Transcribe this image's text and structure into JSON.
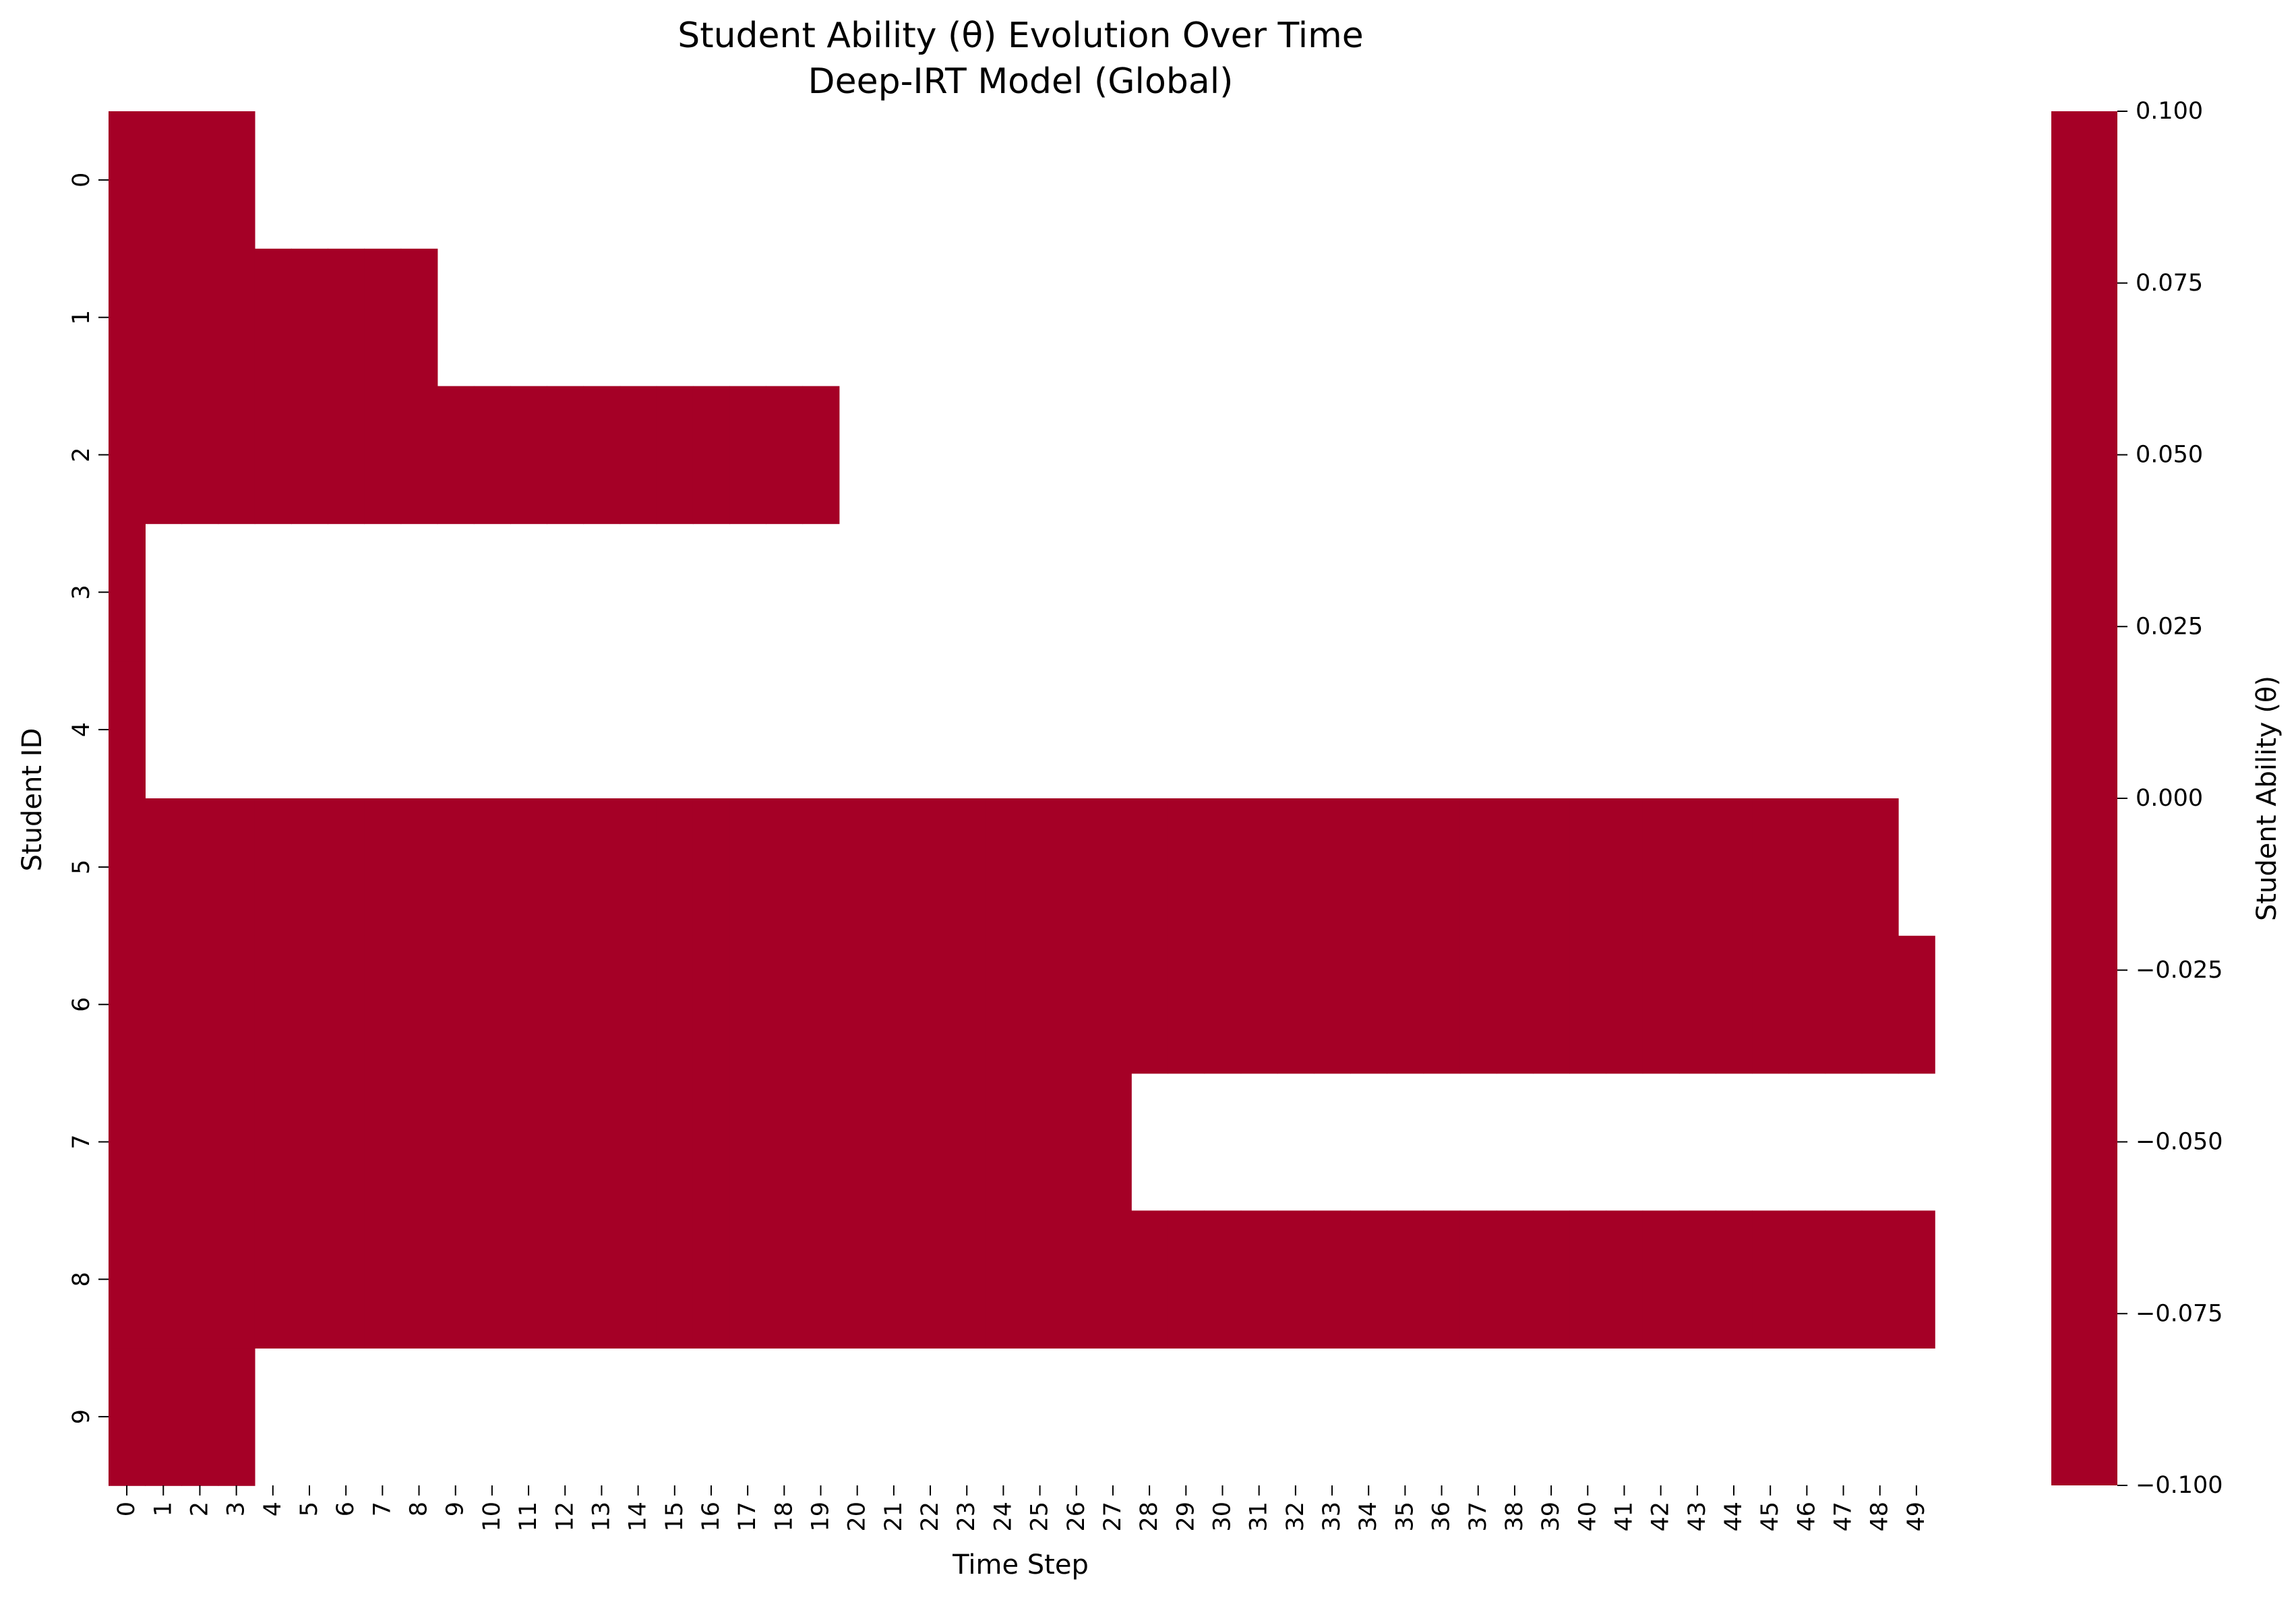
{
  "chart_data": {
    "type": "heatmap",
    "title": "Student Ability (θ) Evolution Over Time",
    "subtitle": "Deep-IRT Model (Global)",
    "xlabel": "Time Step",
    "ylabel": "Student ID",
    "x_categories": [
      0,
      1,
      2,
      3,
      4,
      5,
      6,
      7,
      8,
      9,
      10,
      11,
      12,
      13,
      14,
      15,
      16,
      17,
      18,
      19,
      20,
      21,
      22,
      23,
      24,
      25,
      26,
      27,
      28,
      29,
      30,
      31,
      32,
      33,
      34,
      35,
      36,
      37,
      38,
      39,
      40,
      41,
      42,
      43,
      44,
      45,
      46,
      47,
      48,
      49
    ],
    "y_categories": [
      0,
      1,
      2,
      3,
      4,
      5,
      6,
      7,
      8,
      9
    ],
    "fill_value": 0.0,
    "masked_value": "NaN (blank)",
    "row_lengths": [
      4,
      9,
      20,
      1,
      1,
      49,
      50,
      28,
      50,
      4
    ],
    "colormap": "RdBu_r",
    "cell_color": "#a50026",
    "colorbar": {
      "label": "Student Ability (θ)",
      "range": [
        -0.1,
        0.1
      ],
      "ticks": [
        "−0.100",
        "−0.075",
        "−0.050",
        "−0.025",
        "0.000",
        "0.025",
        "0.050",
        "0.075",
        "0.100"
      ],
      "tick_values": [
        -0.1,
        -0.075,
        -0.05,
        -0.025,
        0.0,
        0.025,
        0.05,
        0.075,
        0.1
      ]
    },
    "grid": false
  }
}
